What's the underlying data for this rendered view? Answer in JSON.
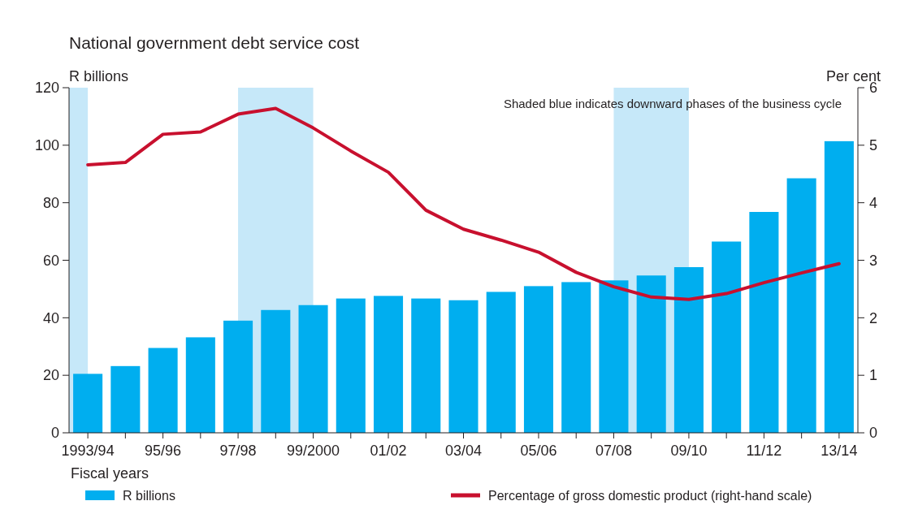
{
  "chart_data": {
    "type": "bar",
    "title": "National government debt service cost",
    "ylabel": "R billions",
    "y2label": "Per cent",
    "xlabel": "Fiscal years",
    "annotations": [
      "Shaded blue indicates downward phases of the business cycle"
    ],
    "categories": [
      "1993/94",
      null,
      "95/96",
      null,
      "97/98",
      null,
      "99/2000",
      null,
      "01/02",
      null,
      "03/04",
      null,
      "05/06",
      null,
      "07/08",
      null,
      "09/10",
      null,
      "11/12",
      null,
      "13/14"
    ],
    "series": [
      {
        "name": "R billions",
        "color": "#00aeef",
        "values": [
          20.5,
          23.2,
          29.5,
          33.2,
          39,
          42.7,
          44.4,
          46.7,
          47.6,
          46.7,
          46.1,
          49,
          51,
          52.4,
          53,
          54.7,
          57.6,
          66.5,
          76.8,
          88.5,
          101.4
        ]
      },
      {
        "name": "Percentage of gross domestic product (right-hand scale)",
        "type": "line",
        "axis": "y2",
        "color": "#c8102e",
        "values": [
          4.66,
          4.7,
          5.19,
          5.23,
          5.54,
          5.64,
          5.3,
          4.9,
          4.53,
          3.87,
          3.54,
          3.35,
          3.14,
          2.79,
          2.54,
          2.36,
          2.32,
          2.42,
          2.61,
          2.78,
          2.94
        ]
      }
    ],
    "ylim": [
      0,
      120
    ],
    "yticks": [
      0,
      20,
      40,
      60,
      80,
      100,
      120
    ],
    "y2lim": [
      0,
      6
    ],
    "y2ticks": [
      0,
      1,
      2,
      3,
      4,
      5,
      6
    ],
    "bands": [
      {
        "axis": "x",
        "from": "1993/94",
        "to": "1993/94",
        "color": "#c6e8f9"
      },
      {
        "axis": "x",
        "from": "97/98",
        "to": "99/2000",
        "color": "#c6e8f9"
      },
      {
        "axis": "x",
        "from": "07/08",
        "to": "09/10",
        "color": "#c6e8f9"
      }
    ],
    "grid": false,
    "legend": "bottom",
    "marker": "none",
    "line_style": "solid"
  }
}
